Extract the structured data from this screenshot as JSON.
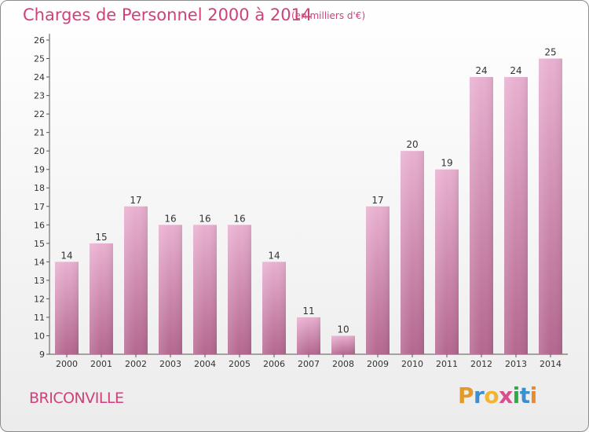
{
  "title": "Charges de Personnel 2000 à 2014",
  "subtitle": "(en milliers d'€)",
  "commune": "BRICONVILLE",
  "logo": {
    "letters": [
      "P",
      "r",
      "o",
      "x",
      "i",
      "t",
      "i"
    ],
    "colors": [
      "#e39a2b",
      "#3a8fd3",
      "#f2b531",
      "#d84f8d",
      "#2eaa4a",
      "#3a8fd3",
      "#e88b2c"
    ]
  },
  "colors": {
    "title": "#d0407a",
    "bar_top": "#e9b0d0",
    "bar_bottom": "#b4678f",
    "axis": "#555555"
  },
  "chart_data": {
    "type": "bar",
    "title": "Charges de Personnel 2000 à 2014",
    "subtitle": "(en milliers d'€)",
    "categories": [
      "2000",
      "2001",
      "2002",
      "2003",
      "2004",
      "2005",
      "2006",
      "2007",
      "2008",
      "2009",
      "2010",
      "2011",
      "2012",
      "2013",
      "2014"
    ],
    "values": [
      14,
      15,
      17,
      16,
      16,
      16,
      14,
      11,
      10,
      17,
      20,
      19,
      24,
      24,
      25
    ],
    "ylim": [
      9,
      26
    ],
    "yticks": [
      9,
      10,
      11,
      12,
      13,
      14,
      15,
      16,
      17,
      18,
      19,
      20,
      21,
      22,
      23,
      24,
      25,
      26
    ],
    "grid": false,
    "data_labels": true
  }
}
